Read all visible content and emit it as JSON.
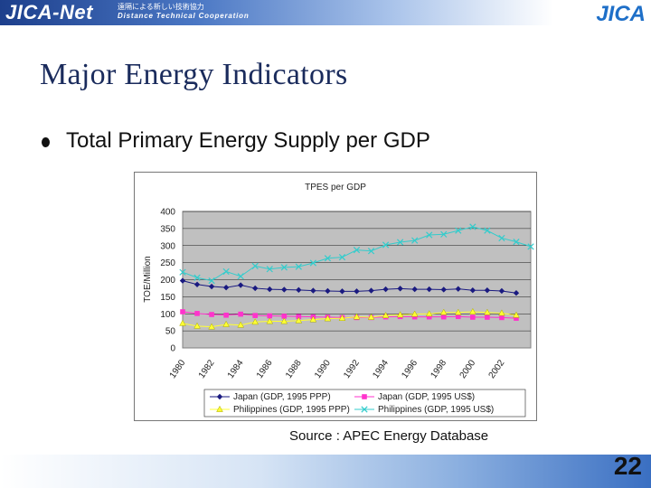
{
  "header": {
    "logo_text": "JICA-Net",
    "subtitle_jp": "遠隔による新しい技術協力",
    "subtitle_en": "Distance Technical Cooperation",
    "org_logo_text": "JICA"
  },
  "slide": {
    "title": "Major Energy Indicators",
    "bullet": "Total Primary Energy Supply per GDP",
    "source": "Source : APEC Energy Database",
    "page_number": "22"
  },
  "colors": {
    "japan_ppp": "#1a1a80",
    "japan_usd": "#ff33cc",
    "philippines_ppp": "#ffff33",
    "philippines_usd": "#33cccc",
    "plot_bg": "#c0c0c0"
  },
  "chart_data": {
    "type": "line",
    "title": "TPES per GDP",
    "xlabel": "",
    "ylabel": "TOE/Million",
    "x": [
      1980,
      1981,
      1982,
      1983,
      1984,
      1985,
      1986,
      1987,
      1988,
      1989,
      1990,
      1991,
      1992,
      1993,
      1994,
      1995,
      1996,
      1997,
      1998,
      1999,
      2000,
      2001,
      2002,
      2003,
      2004
    ],
    "x_tick_labels": [
      "1980",
      "1982",
      "1984",
      "1986",
      "1988",
      "1990",
      "1992",
      "1994",
      "1996",
      "1998",
      "2000",
      "2002"
    ],
    "y_ticks": [
      0,
      50,
      100,
      150,
      200,
      250,
      300,
      350,
      400
    ],
    "ylim": [
      0,
      400
    ],
    "grid": true,
    "legend_position": "bottom",
    "series": [
      {
        "name": "Japan (GDP, 1995 PPP)",
        "color": "#1a1a80",
        "marker": "diamond",
        "values": [
          197,
          186,
          180,
          177,
          184,
          175,
          172,
          171,
          170,
          168,
          167,
          166,
          166,
          168,
          172,
          174,
          172,
          172,
          171,
          173,
          169,
          169,
          167,
          161,
          null
        ]
      },
      {
        "name": "Japan (GDP, 1995 US$)",
        "color": "#ff33cc",
        "marker": "square",
        "values": [
          106,
          101,
          98,
          96,
          99,
          95,
          94,
          93,
          92,
          91,
          90,
          89,
          89,
          89,
          91,
          92,
          91,
          91,
          91,
          92,
          90,
          90,
          89,
          87,
          null
        ]
      },
      {
        "name": "Philippines (GDP, 1995 PPP)",
        "color": "#ffff33",
        "marker": "triangle",
        "values": [
          72,
          64,
          62,
          69,
          67,
          76,
          78,
          78,
          80,
          83,
          86,
          87,
          91,
          90,
          95,
          97,
          99,
          100,
          104,
          104,
          106,
          104,
          102,
          96,
          null
        ]
      },
      {
        "name": "Philippines (GDP, 1995 US$)",
        "color": "#33cccc",
        "marker": "x",
        "values": [
          222,
          206,
          197,
          224,
          210,
          240,
          231,
          236,
          238,
          249,
          263,
          266,
          287,
          284,
          302,
          310,
          315,
          331,
          333,
          344,
          355,
          344,
          322,
          311,
          297
        ]
      }
    ]
  }
}
